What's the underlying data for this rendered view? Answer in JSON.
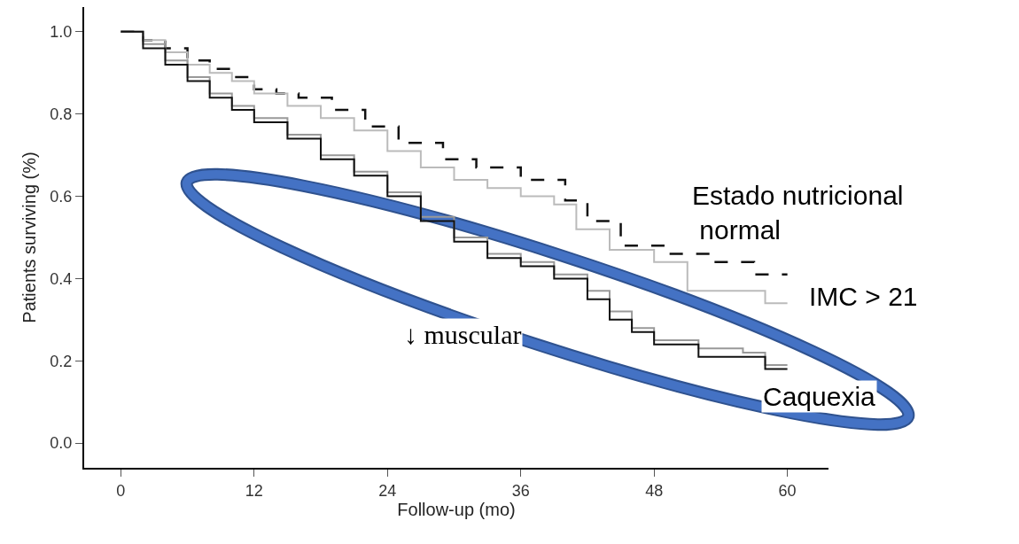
{
  "chart_data": {
    "type": "step",
    "xlabel": "Follow-up (mo)",
    "ylabel": "Patients surviving (%)",
    "xlim": [
      -3.3,
      63.7
    ],
    "xticks": [
      0,
      12,
      24,
      36,
      48,
      60
    ],
    "ylim": [
      -0.06,
      1.06
    ],
    "yticks": [
      {
        "value": 0,
        "label": "0.0"
      },
      0.2,
      0.4,
      0.6,
      0.8,
      {
        "value": 1,
        "label": "1.0"
      }
    ],
    "grid": false,
    "legend": false,
    "series": [
      {
        "name": "Estado nutricional normal",
        "color": "#111111",
        "line_style": "dashed",
        "x": [
          0,
          2,
          4,
          6,
          8,
          10,
          12,
          14,
          16,
          19,
          22,
          25,
          29,
          32,
          36,
          40,
          42,
          45,
          49,
          53,
          57,
          60
        ],
        "values": [
          1.0,
          0.98,
          0.96,
          0.93,
          0.91,
          0.89,
          0.86,
          0.85,
          0.84,
          0.81,
          0.77,
          0.73,
          0.69,
          0.67,
          0.64,
          0.59,
          0.54,
          0.48,
          0.46,
          0.44,
          0.41,
          0.41
        ]
      },
      {
        "name": "IMC > 21",
        "color": "#bbbbbb",
        "line_style": "solid",
        "x": [
          0,
          2,
          4,
          6,
          8,
          10,
          12,
          15,
          18,
          21,
          24,
          27,
          30,
          33,
          36,
          39,
          41,
          44,
          48,
          51,
          55,
          58,
          60
        ],
        "values": [
          1.0,
          0.98,
          0.95,
          0.92,
          0.9,
          0.88,
          0.85,
          0.82,
          0.79,
          0.76,
          0.71,
          0.67,
          0.64,
          0.62,
          0.6,
          0.58,
          0.52,
          0.47,
          0.44,
          0.37,
          0.37,
          0.34,
          0.34
        ]
      },
      {
        "name": "↓ muscular",
        "color": "#999999",
        "line_style": "solid",
        "x": [
          0,
          2,
          4,
          6,
          8,
          10,
          12,
          15,
          18,
          21,
          24,
          27,
          30,
          33,
          36,
          39,
          42,
          44,
          46,
          48,
          52,
          56,
          58,
          60
        ],
        "values": [
          1.0,
          0.97,
          0.93,
          0.89,
          0.85,
          0.82,
          0.79,
          0.75,
          0.7,
          0.66,
          0.61,
          0.55,
          0.5,
          0.46,
          0.44,
          0.41,
          0.37,
          0.32,
          0.28,
          0.25,
          0.23,
          0.22,
          0.19,
          0.19
        ]
      },
      {
        "name": "Caquexia",
        "color": "#111111",
        "line_style": "solid",
        "x": [
          0,
          2,
          4,
          6,
          8,
          10,
          12,
          15,
          18,
          21,
          24,
          27,
          30,
          33,
          36,
          39,
          42,
          44,
          46,
          48,
          52,
          56,
          58,
          60
        ],
        "values": [
          1.0,
          0.96,
          0.92,
          0.88,
          0.84,
          0.81,
          0.78,
          0.74,
          0.69,
          0.65,
          0.6,
          0.54,
          0.49,
          0.45,
          0.43,
          0.4,
          0.35,
          0.3,
          0.27,
          0.24,
          0.21,
          0.21,
          0.18,
          0.18
        ]
      }
    ]
  }
}
